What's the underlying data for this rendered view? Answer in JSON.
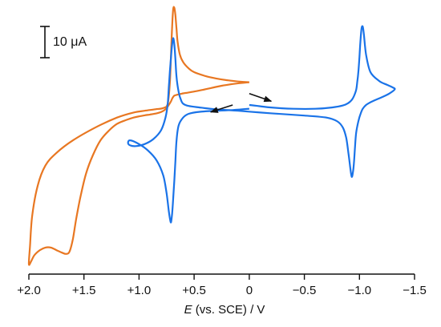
{
  "chart_data": {
    "type": "line",
    "xlabel": "E (vs. SCE) / V",
    "xlabel_italic": "E",
    "xlabel_rest": " (vs. SCE) / V",
    "xlim": [
      2.0,
      -1.5
    ],
    "x_ticks": [
      2.0,
      1.5,
      1.0,
      0.5,
      0.0,
      -0.5,
      -1.0,
      -1.5
    ],
    "x_tick_labels": [
      "+2.0",
      "+1.5",
      "+1.0",
      "+0.5",
      "0",
      "−0.5",
      "−1.0",
      "−1.5"
    ],
    "ylim_uA": [
      -65,
      42
    ],
    "grid": false,
    "scale_bar": {
      "label": "10 μA",
      "value_uA": 10
    },
    "series": [
      {
        "color": "#E87722",
        "x": [
          0.0,
          0.1,
          0.2,
          0.3,
          0.4,
          0.5,
          0.55,
          0.6,
          0.63,
          0.65,
          0.66,
          0.67,
          0.68,
          0.69,
          0.7,
          0.71,
          0.72,
          0.74,
          0.78,
          0.85,
          0.95,
          1.05,
          1.2,
          1.4,
          1.6,
          1.75,
          1.85,
          1.92,
          1.97,
          1.99,
          2.0,
          1.98,
          1.95,
          1.9,
          1.85,
          1.8,
          1.75,
          1.7,
          1.66,
          1.63,
          1.6,
          1.57,
          1.53,
          1.48,
          1.42,
          1.35,
          1.27,
          1.2,
          1.12,
          1.05,
          1.0,
          0.95,
          0.9,
          0.85,
          0.8,
          0.76,
          0.73,
          0.71,
          0.7,
          0.69,
          0.68,
          0.66,
          0.64,
          0.62,
          0.6,
          0.57,
          0.53,
          0.48,
          0.42,
          0.35,
          0.25,
          0.15,
          0.05,
          0.0
        ],
        "y": [
          11.0,
          11.3,
          11.8,
          12.5,
          13.5,
          15.0,
          16.5,
          19.0,
          22.0,
          27.0,
          32.0,
          37.5,
          40.5,
          40.0,
          33.0,
          22.0,
          11.0,
          2.5,
          0.8,
          0.3,
          -0.3,
          -1.0,
          -3.0,
          -7.0,
          -12.0,
          -17.0,
          -22.0,
          -30.0,
          -42.0,
          -54.0,
          -61.0,
          -60.0,
          -57.5,
          -55.5,
          -54.5,
          -54.5,
          -55.5,
          -56.5,
          -57.0,
          -56.0,
          -51.0,
          -43.0,
          -34.0,
          -25.0,
          -18.0,
          -12.0,
          -8.0,
          -5.5,
          -4.0,
          -3.0,
          -2.5,
          -2.1,
          -1.8,
          -1.4,
          -0.8,
          0.3,
          2.0,
          3.5,
          4.5,
          5.2,
          5.7,
          6.0,
          6.2,
          6.4,
          6.6,
          6.8,
          7.1,
          7.5,
          8.0,
          8.7,
          9.6,
          10.3,
          10.8,
          11.0
        ]
      },
      {
        "color": "#1A73E8",
        "x": [
          0.0,
          -0.1,
          -0.2,
          -0.4,
          -0.6,
          -0.75,
          -0.85,
          -0.9,
          -0.93,
          -0.95,
          -0.97,
          -0.98,
          -0.99,
          -1.0,
          -1.01,
          -1.02,
          -1.03,
          -1.04,
          -1.06,
          -1.1,
          -1.18,
          -1.25,
          -1.3,
          -1.32,
          -1.27,
          -1.2,
          -1.12,
          -1.06,
          -1.03,
          -1.01,
          -0.99,
          -0.97,
          -0.96,
          -0.95,
          -0.94,
          -0.93,
          -0.92,
          -0.9,
          -0.88,
          -0.85,
          -0.8,
          -0.7,
          -0.5,
          -0.3,
          -0.1,
          0.1,
          0.3,
          0.45,
          0.55,
          0.6,
          0.62,
          0.64,
          0.66,
          0.67,
          0.68,
          0.69,
          0.7,
          0.71,
          0.72,
          0.73,
          0.74,
          0.76,
          0.8,
          0.87,
          0.95,
          1.03,
          1.08,
          1.1,
          1.08,
          1.0,
          0.92,
          0.84,
          0.78,
          0.75,
          0.73,
          0.72,
          0.71,
          0.7,
          0.69,
          0.68,
          0.67,
          0.66,
          0.64,
          0.6,
          0.55,
          0.45,
          0.3,
          0.15,
          0.0
        ],
        "y": [
          2.0,
          1.5,
          1.0,
          0.5,
          0.5,
          1.0,
          1.8,
          2.8,
          4.0,
          5.5,
          8.0,
          11.0,
          15.0,
          21.0,
          28.0,
          32.5,
          33.0,
          30.0,
          22.0,
          15.0,
          11.5,
          10.0,
          9.0,
          8.2,
          6.5,
          5.0,
          3.5,
          2.0,
          0.5,
          -1.5,
          -4.5,
          -9.0,
          -14.5,
          -21.0,
          -25.0,
          -26.5,
          -24.0,
          -17.0,
          -11.0,
          -7.0,
          -4.5,
          -3.0,
          -2.2,
          -1.6,
          -1.0,
          -0.3,
          0.3,
          1.0,
          1.6,
          2.5,
          4.0,
          7.0,
          13.0,
          20.0,
          26.0,
          28.5,
          26.0,
          21.0,
          15.5,
          9.0,
          2.5,
          -3.0,
          -8.0,
          -11.5,
          -13.5,
          -14.3,
          -14.0,
          -13.0,
          -12.0,
          -13.5,
          -16.0,
          -20.0,
          -26.0,
          -33.0,
          -40.0,
          -43.0,
          -44.5,
          -41.0,
          -35.0,
          -28.0,
          -20.0,
          -12.0,
          -6.0,
          -3.0,
          -1.5,
          -0.7,
          -0.3,
          0.0,
          0.5
        ]
      }
    ],
    "annotations": [
      {
        "type": "arrow",
        "series_color": "#111111",
        "from": [
          0.0,
          6.5
        ],
        "to": [
          -0.2,
          3.5
        ]
      },
      {
        "type": "arrow",
        "series_color": "#111111",
        "from": [
          0.15,
          2.0
        ],
        "to": [
          0.35,
          -0.8
        ]
      }
    ]
  }
}
